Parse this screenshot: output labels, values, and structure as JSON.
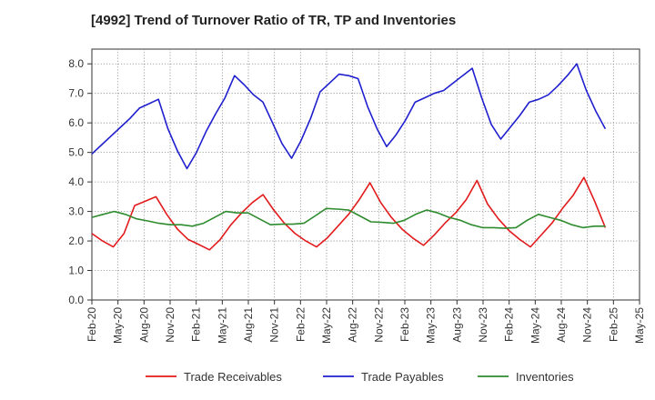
{
  "chart_data": {
    "type": "line",
    "title": "[4992]  Trend of Turnover Ratio of TR, TP and Inventories",
    "xlabel": "",
    "ylabel": "",
    "ylim": [
      0,
      8.5
    ],
    "y_ticks": [
      "0.0",
      "1.0",
      "2.0",
      "3.0",
      "4.0",
      "5.0",
      "6.0",
      "7.0",
      "8.0"
    ],
    "x_tick_labels": [
      "Feb-20",
      "May-20",
      "Aug-20",
      "Nov-20",
      "Feb-21",
      "May-21",
      "Aug-21",
      "Nov-21",
      "Feb-22",
      "May-22",
      "Aug-22",
      "Nov-22",
      "Feb-23",
      "May-23",
      "Aug-23",
      "Nov-23",
      "Feb-24",
      "May-24",
      "Aug-24",
      "Nov-24",
      "Feb-25",
      "May-25"
    ],
    "x_months": 64,
    "grid": true,
    "legend_position": "bottom",
    "series": [
      {
        "name": "Trade Receivables",
        "color": "#e31a1c",
        "values": [
          2.25,
          2.0,
          1.8,
          2.25,
          3.2,
          3.35,
          3.5,
          2.9,
          2.4,
          2.05,
          1.88,
          1.7,
          2.05,
          2.55,
          2.95,
          3.3,
          3.57,
          3.05,
          2.6,
          2.25,
          2.0,
          1.8,
          2.1,
          2.5,
          2.9,
          3.4,
          3.97,
          3.3,
          2.8,
          2.4,
          2.1,
          1.85,
          2.2,
          2.6,
          2.95,
          3.4,
          4.05,
          3.25,
          2.75,
          2.35,
          2.05,
          1.8,
          2.2,
          2.6,
          3.1,
          3.55,
          4.15,
          3.35,
          2.45
        ]
      },
      {
        "name": "Trade Payables",
        "color": "#1f1fcf",
        "values": [
          4.95,
          5.25,
          5.55,
          5.85,
          6.15,
          6.5,
          6.65,
          6.8,
          5.8,
          5.05,
          4.45,
          5.0,
          5.7,
          6.3,
          6.85,
          7.6,
          7.3,
          6.95,
          6.7,
          6.0,
          5.3,
          4.8,
          5.4,
          6.15,
          7.05,
          7.35,
          7.65,
          7.6,
          7.5,
          6.55,
          5.8,
          5.2,
          5.6,
          6.1,
          6.7,
          6.85,
          7.0,
          7.1,
          7.35,
          7.6,
          7.85,
          6.85,
          5.95,
          5.45,
          5.85,
          6.25,
          6.7,
          6.8,
          6.95,
          7.25,
          7.6,
          8.0,
          7.1,
          6.4,
          5.8
        ]
      },
      {
        "name": "Inventories",
        "color": "#2e8b2e",
        "values": [
          2.8,
          2.9,
          3.0,
          2.9,
          2.75,
          2.68,
          2.6,
          2.55,
          2.55,
          2.5,
          2.6,
          2.8,
          3.0,
          2.95,
          2.95,
          2.75,
          2.55,
          2.57,
          2.57,
          2.6,
          2.85,
          3.1,
          3.08,
          3.05,
          2.85,
          2.65,
          2.63,
          2.6,
          2.7,
          2.9,
          3.05,
          2.95,
          2.8,
          2.7,
          2.55,
          2.45,
          2.45,
          2.43,
          2.45,
          2.7,
          2.9,
          2.8,
          2.7,
          2.55,
          2.45,
          2.5,
          2.5
        ]
      }
    ]
  }
}
